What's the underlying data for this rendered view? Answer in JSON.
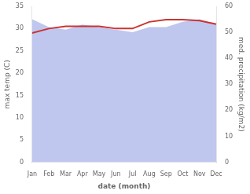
{
  "chart_data": {
    "type": "line",
    "categories": [
      "Jan",
      "Feb",
      "Mar",
      "Apr",
      "May",
      "Jun",
      "Jul",
      "Aug",
      "Sep",
      "Oct",
      "Nov",
      "Dec"
    ],
    "series": [
      {
        "type": "area",
        "color": "#aab4e8",
        "axis": "y2",
        "values": [
          55,
          52,
          51,
          53,
          52,
          51,
          50,
          52,
          52,
          54,
          55,
          53
        ]
      },
      {
        "type": "line",
        "color": "#cc3333",
        "values": [
          29,
          30,
          30.5,
          30.5,
          30.5,
          30,
          30,
          31.5,
          32,
          32,
          31.8,
          31
        ]
      }
    ],
    "xlabel": "date (month)",
    "ylabel": "max temp (C)",
    "y2label": "med. precipitation (kg/m2)",
    "ylim": [
      0,
      35
    ],
    "yticks": [
      0,
      5,
      10,
      15,
      20,
      25,
      30,
      35
    ],
    "y2lim": [
      0,
      60
    ],
    "y2ticks": [
      0,
      10,
      20,
      30,
      40,
      50,
      60
    ],
    "grid": false
  }
}
